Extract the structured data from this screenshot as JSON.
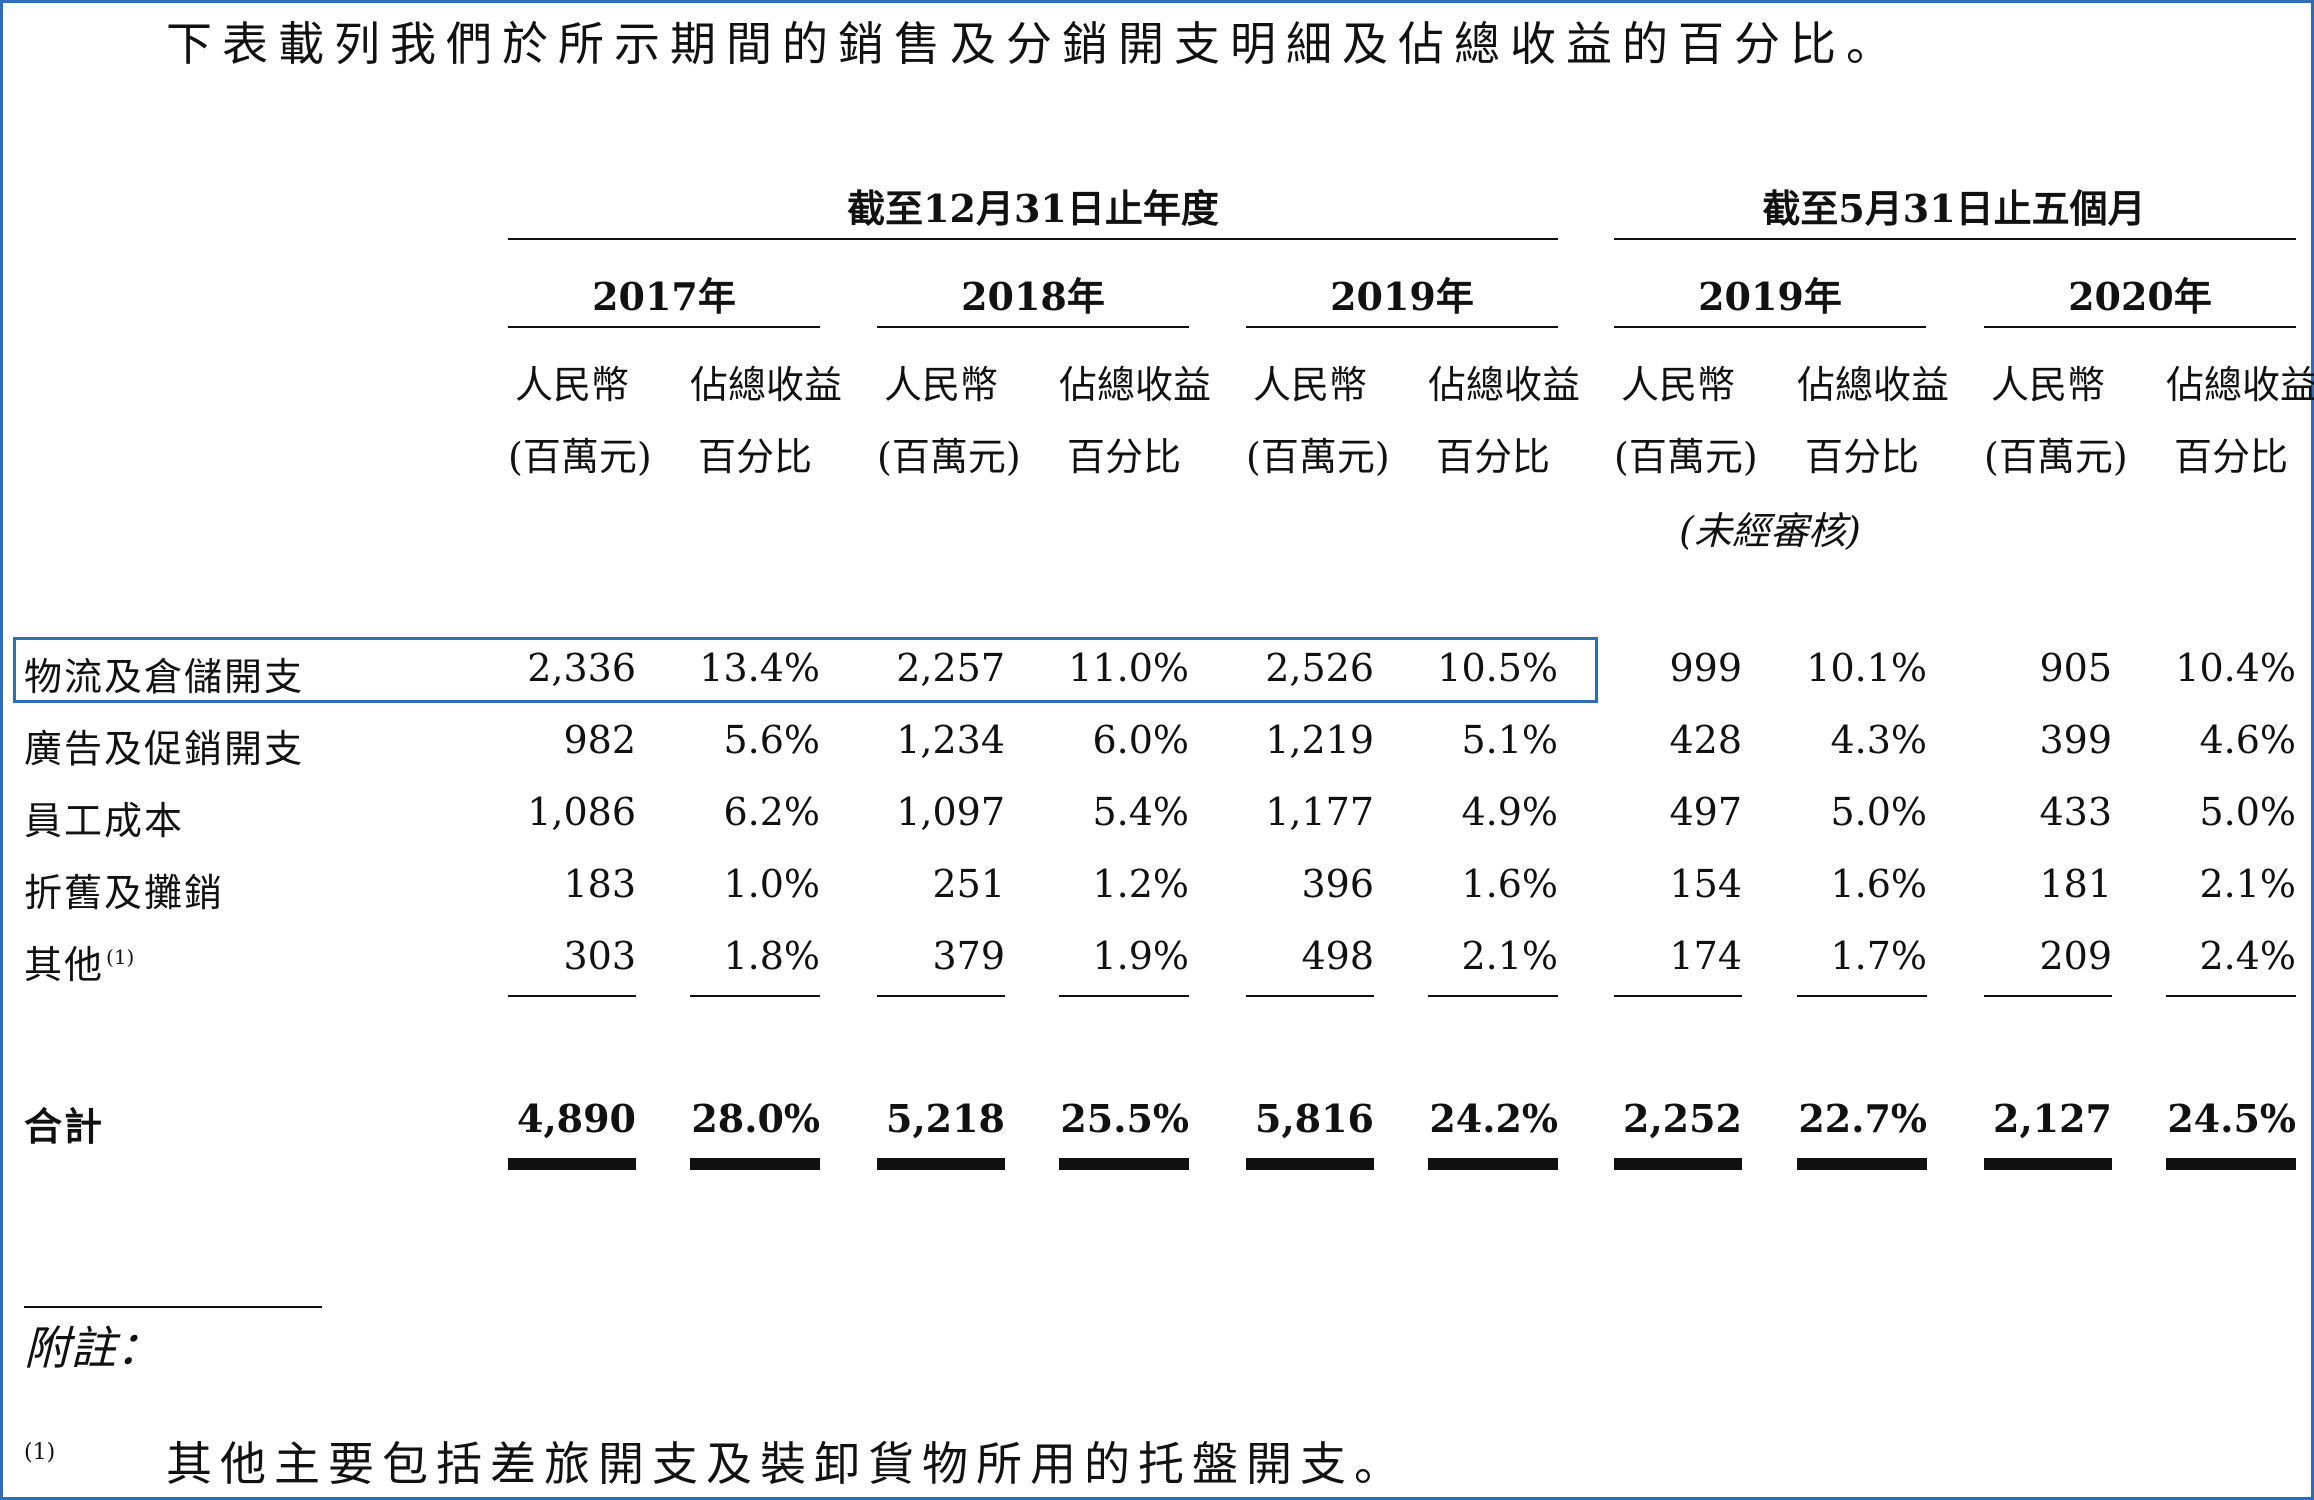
{
  "intro": "下表載列我們於所示期間的銷售及分銷開支明細及佔總收益的百分比。",
  "groups": [
    "截至12月31日止年度",
    "截至5月31日止五個月"
  ],
  "years": [
    "2017年",
    "2018年",
    "2019年",
    "2019年",
    "2020年"
  ],
  "sub_headers": {
    "amount_line1": "人民幣",
    "amount_line2": "(百萬元)",
    "pct_line1": "佔總收益",
    "pct_line2": "百分比",
    "unaudited": "(未經審核)"
  },
  "rows": [
    {
      "label": "物流及倉儲開支",
      "cells": [
        "2,336",
        "13.4%",
        "2,257",
        "11.0%",
        "2,526",
        "10.5%",
        "999",
        "10.1%",
        "905",
        "10.4%"
      ]
    },
    {
      "label": "廣告及促銷開支",
      "cells": [
        "982",
        "5.6%",
        "1,234",
        "6.0%",
        "1,219",
        "5.1%",
        "428",
        "4.3%",
        "399",
        "4.6%"
      ]
    },
    {
      "label": "員工成本",
      "cells": [
        "1,086",
        "6.2%",
        "1,097",
        "5.4%",
        "1,177",
        "4.9%",
        "497",
        "5.0%",
        "433",
        "5.0%"
      ]
    },
    {
      "label": "折舊及攤銷",
      "cells": [
        "183",
        "1.0%",
        "251",
        "1.2%",
        "396",
        "1.6%",
        "154",
        "1.6%",
        "181",
        "2.1%"
      ]
    },
    {
      "label": "其他",
      "note_ref": "(1)",
      "cells": [
        "303",
        "1.8%",
        "379",
        "1.9%",
        "498",
        "2.1%",
        "174",
        "1.7%",
        "209",
        "2.4%"
      ]
    }
  ],
  "total": {
    "label": "合計",
    "cells": [
      "4,890",
      "28.0%",
      "5,218",
      "25.5%",
      "5,816",
      "24.2%",
      "2,252",
      "22.7%",
      "2,127",
      "24.5%"
    ]
  },
  "notes": {
    "heading": "附註：",
    "items": [
      {
        "marker": "(1)",
        "text": "其他主要包括差旅開支及裝卸貨物所用的托盤開支。"
      }
    ]
  },
  "colors": {
    "highlight": "#2f6db5",
    "text": "#111111",
    "background": "#ffffff"
  }
}
